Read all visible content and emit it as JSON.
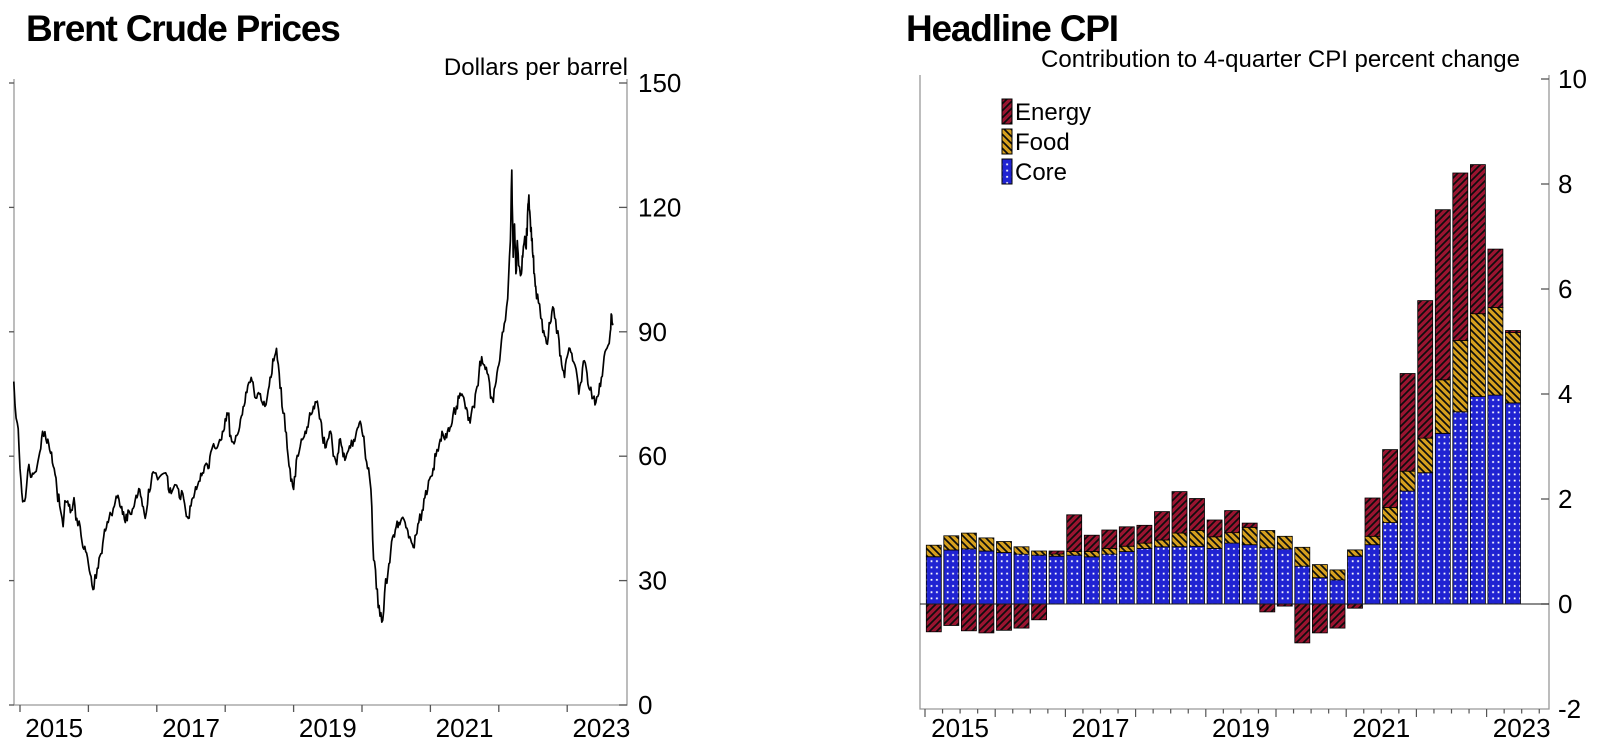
{
  "page": {
    "background": "#ffffff",
    "text_color": "#000000",
    "frame_color": "#999999",
    "tick_color": "#555555"
  },
  "chart_data": [
    {
      "id": "brent",
      "type": "line",
      "title": "Brent Crude Prices",
      "unit_label": "Dollars per barrel",
      "series_name": "Brent crude oil spot price",
      "line_color": "#000000",
      "xlim": [
        2014.91,
        2023.87
      ],
      "ylim": [
        0,
        150
      ],
      "y_ticks": [
        0,
        30,
        60,
        90,
        120,
        150
      ],
      "x_tick_years": [
        2015,
        2016,
        2017,
        2018,
        2019,
        2020,
        2021,
        2022,
        2023
      ],
      "x_label_years": [
        2015,
        2017,
        2019,
        2021,
        2023
      ],
      "grid": false,
      "points": [
        [
          2014.91,
          78
        ],
        [
          2014.96,
          68
        ],
        [
          2015.0,
          57
        ],
        [
          2015.04,
          49
        ],
        [
          2015.08,
          50
        ],
        [
          2015.13,
          58
        ],
        [
          2015.17,
          55
        ],
        [
          2015.21,
          56
        ],
        [
          2015.29,
          61
        ],
        [
          2015.33,
          66
        ],
        [
          2015.38,
          64
        ],
        [
          2015.42,
          63
        ],
        [
          2015.46,
          61
        ],
        [
          2015.5,
          57
        ],
        [
          2015.54,
          52
        ],
        [
          2015.58,
          48
        ],
        [
          2015.63,
          43
        ],
        [
          2015.67,
          49
        ],
        [
          2015.71,
          48
        ],
        [
          2015.75,
          47
        ],
        [
          2015.79,
          50
        ],
        [
          2015.83,
          45
        ],
        [
          2015.88,
          43
        ],
        [
          2015.92,
          38
        ],
        [
          2015.96,
          37
        ],
        [
          2016.0,
          34
        ],
        [
          2016.04,
          31
        ],
        [
          2016.08,
          28
        ],
        [
          2016.13,
          33
        ],
        [
          2016.17,
          36
        ],
        [
          2016.21,
          39
        ],
        [
          2016.25,
          42
        ],
        [
          2016.29,
          44
        ],
        [
          2016.33,
          46
        ],
        [
          2016.38,
          48
        ],
        [
          2016.42,
          50
        ],
        [
          2016.46,
          48
        ],
        [
          2016.5,
          46
        ],
        [
          2016.54,
          44
        ],
        [
          2016.58,
          47
        ],
        [
          2016.63,
          46
        ],
        [
          2016.67,
          48
        ],
        [
          2016.71,
          50
        ],
        [
          2016.75,
          52
        ],
        [
          2016.79,
          48
        ],
        [
          2016.83,
          45
        ],
        [
          2016.88,
          52
        ],
        [
          2016.92,
          54
        ],
        [
          2016.96,
          56
        ],
        [
          2017.04,
          55
        ],
        [
          2017.13,
          56
        ],
        [
          2017.17,
          52
        ],
        [
          2017.21,
          51
        ],
        [
          2017.29,
          53
        ],
        [
          2017.33,
          50
        ],
        [
          2017.38,
          51
        ],
        [
          2017.42,
          47
        ],
        [
          2017.46,
          45
        ],
        [
          2017.5,
          48
        ],
        [
          2017.54,
          50
        ],
        [
          2017.58,
          52
        ],
        [
          2017.63,
          54
        ],
        [
          2017.67,
          56
        ],
        [
          2017.71,
          58
        ],
        [
          2017.75,
          57
        ],
        [
          2017.79,
          61
        ],
        [
          2017.83,
          63
        ],
        [
          2017.88,
          62
        ],
        [
          2017.92,
          64
        ],
        [
          2017.96,
          66
        ],
        [
          2018.0,
          69
        ],
        [
          2018.04,
          70
        ],
        [
          2018.08,
          65
        ],
        [
          2018.13,
          63
        ],
        [
          2018.17,
          65
        ],
        [
          2018.21,
          67
        ],
        [
          2018.25,
          70
        ],
        [
          2018.29,
          73
        ],
        [
          2018.33,
          77
        ],
        [
          2018.38,
          79
        ],
        [
          2018.42,
          76
        ],
        [
          2018.46,
          74
        ],
        [
          2018.5,
          75
        ],
        [
          2018.54,
          73
        ],
        [
          2018.58,
          72
        ],
        [
          2018.63,
          76
        ],
        [
          2018.67,
          79
        ],
        [
          2018.71,
          83
        ],
        [
          2018.75,
          86
        ],
        [
          2018.79,
          80
        ],
        [
          2018.83,
          72
        ],
        [
          2018.88,
          66
        ],
        [
          2018.92,
          60
        ],
        [
          2018.96,
          54
        ],
        [
          2019.0,
          52
        ],
        [
          2019.04,
          59
        ],
        [
          2019.08,
          61
        ],
        [
          2019.13,
          64
        ],
        [
          2019.17,
          66
        ],
        [
          2019.21,
          67
        ],
        [
          2019.25,
          70
        ],
        [
          2019.29,
          72
        ],
        [
          2019.33,
          73
        ],
        [
          2019.38,
          69
        ],
        [
          2019.42,
          65
        ],
        [
          2019.46,
          62
        ],
        [
          2019.5,
          64
        ],
        [
          2019.54,
          66
        ],
        [
          2019.58,
          60
        ],
        [
          2019.63,
          58
        ],
        [
          2019.67,
          64
        ],
        [
          2019.71,
          62
        ],
        [
          2019.75,
          59
        ],
        [
          2019.79,
          61
        ],
        [
          2019.83,
          62
        ],
        [
          2019.88,
          64
        ],
        [
          2019.92,
          66
        ],
        [
          2019.96,
          68
        ],
        [
          2020.0,
          66
        ],
        [
          2020.04,
          62
        ],
        [
          2020.08,
          57
        ],
        [
          2020.13,
          52
        ],
        [
          2020.17,
          35
        ],
        [
          2020.21,
          28
        ],
        [
          2020.25,
          24
        ],
        [
          2020.29,
          20
        ],
        [
          2020.33,
          27
        ],
        [
          2020.38,
          32
        ],
        [
          2020.42,
          37
        ],
        [
          2020.46,
          41
        ],
        [
          2020.5,
          43
        ],
        [
          2020.54,
          44
        ],
        [
          2020.58,
          45
        ],
        [
          2020.63,
          44
        ],
        [
          2020.67,
          42
        ],
        [
          2020.71,
          40
        ],
        [
          2020.75,
          38
        ],
        [
          2020.79,
          41
        ],
        [
          2020.83,
          44
        ],
        [
          2020.88,
          47
        ],
        [
          2020.92,
          50
        ],
        [
          2020.96,
          52
        ],
        [
          2021.0,
          55
        ],
        [
          2021.04,
          57
        ],
        [
          2021.08,
          60
        ],
        [
          2021.13,
          63
        ],
        [
          2021.17,
          66
        ],
        [
          2021.21,
          64
        ],
        [
          2021.25,
          66
        ],
        [
          2021.29,
          67
        ],
        [
          2021.33,
          70
        ],
        [
          2021.38,
          72
        ],
        [
          2021.42,
          74
        ],
        [
          2021.46,
          75
        ],
        [
          2021.5,
          73
        ],
        [
          2021.54,
          71
        ],
        [
          2021.58,
          68
        ],
        [
          2021.63,
          72
        ],
        [
          2021.67,
          76
        ],
        [
          2021.71,
          80
        ],
        [
          2021.75,
          84
        ],
        [
          2021.79,
          82
        ],
        [
          2021.83,
          80
        ],
        [
          2021.88,
          74
        ],
        [
          2021.92,
          73
        ],
        [
          2021.96,
          78
        ],
        [
          2022.0,
          82
        ],
        [
          2022.04,
          88
        ],
        [
          2022.08,
          92
        ],
        [
          2022.13,
          98
        ],
        [
          2022.17,
          112
        ],
        [
          2022.19,
          129
        ],
        [
          2022.21,
          108
        ],
        [
          2022.23,
          116
        ],
        [
          2022.25,
          104
        ],
        [
          2022.27,
          112
        ],
        [
          2022.29,
          106
        ],
        [
          2022.33,
          104
        ],
        [
          2022.35,
          108
        ],
        [
          2022.38,
          113
        ],
        [
          2022.4,
          110
        ],
        [
          2022.42,
          118
        ],
        [
          2022.44,
          123
        ],
        [
          2022.46,
          117
        ],
        [
          2022.48,
          112
        ],
        [
          2022.5,
          108
        ],
        [
          2022.52,
          104
        ],
        [
          2022.54,
          101
        ],
        [
          2022.58,
          97
        ],
        [
          2022.63,
          93
        ],
        [
          2022.67,
          89
        ],
        [
          2022.71,
          87
        ],
        [
          2022.75,
          92
        ],
        [
          2022.79,
          96
        ],
        [
          2022.83,
          93
        ],
        [
          2022.88,
          88
        ],
        [
          2022.92,
          82
        ],
        [
          2022.96,
          79
        ],
        [
          2023.0,
          84
        ],
        [
          2023.04,
          86
        ],
        [
          2023.08,
          83
        ],
        [
          2023.13,
          81
        ],
        [
          2023.17,
          75
        ],
        [
          2023.21,
          78
        ],
        [
          2023.25,
          83
        ],
        [
          2023.29,
          80
        ],
        [
          2023.33,
          76
        ],
        [
          2023.38,
          74
        ],
        [
          2023.42,
          73
        ],
        [
          2023.46,
          75
        ],
        [
          2023.5,
          79
        ],
        [
          2023.54,
          84
        ],
        [
          2023.58,
          86
        ],
        [
          2023.63,
          90
        ],
        [
          2023.65,
          94
        ],
        [
          2023.67,
          92
        ]
      ]
    },
    {
      "id": "cpi",
      "type": "bar",
      "stacked": true,
      "title": "Headline CPI",
      "subtitle": "Contribution to 4-quarter CPI percent change",
      "ylim": [
        -2,
        10
      ],
      "y_ticks": [
        -2,
        0,
        2,
        4,
        6,
        8,
        10
      ],
      "x_label_years": [
        2015,
        2017,
        2019,
        2021,
        2023
      ],
      "legend_position": "top-left",
      "legend": [
        "Energy",
        "Food",
        "Core"
      ],
      "categories": [
        "2015Q1",
        "2015Q2",
        "2015Q3",
        "2015Q4",
        "2016Q1",
        "2016Q2",
        "2016Q3",
        "2016Q4",
        "2017Q1",
        "2017Q2",
        "2017Q3",
        "2017Q4",
        "2018Q1",
        "2018Q2",
        "2018Q3",
        "2018Q4",
        "2019Q1",
        "2019Q2",
        "2019Q3",
        "2019Q4",
        "2020Q1",
        "2020Q2",
        "2020Q3",
        "2020Q4",
        "2021Q1",
        "2021Q2",
        "2021Q3",
        "2021Q4",
        "2022Q1",
        "2022Q2",
        "2022Q3",
        "2022Q4",
        "2023Q1",
        "2023Q2"
      ],
      "series": [
        {
          "name": "Energy",
          "color": "#9a1430",
          "pattern": "diagonal-up",
          "values": [
            -0.53,
            -0.41,
            -0.51,
            -0.55,
            -0.5,
            -0.46,
            -0.3,
            0.06,
            0.7,
            0.31,
            0.35,
            0.37,
            0.34,
            0.54,
            0.79,
            0.61,
            0.32,
            0.42,
            0.08,
            -0.15,
            -0.04,
            -0.74,
            -0.55,
            -0.46,
            -0.08,
            0.73,
            1.1,
            1.86,
            2.62,
            3.24,
            3.19,
            2.84,
            1.11,
            0.04
          ]
        },
        {
          "name": "Food",
          "color": "#d6a01e",
          "pattern": "diagonal-down",
          "values": [
            0.22,
            0.27,
            0.3,
            0.25,
            0.21,
            0.14,
            0.08,
            0.04,
            0.07,
            0.1,
            0.11,
            0.1,
            0.1,
            0.13,
            0.26,
            0.3,
            0.22,
            0.2,
            0.33,
            0.33,
            0.24,
            0.36,
            0.25,
            0.19,
            0.12,
            0.16,
            0.29,
            0.38,
            0.66,
            1.02,
            1.36,
            1.58,
            1.67,
            1.34
          ]
        },
        {
          "name": "Core",
          "color": "#2023d2",
          "pattern": "white-dots",
          "values": [
            0.9,
            1.03,
            1.05,
            1.01,
            0.98,
            0.95,
            0.93,
            0.91,
            0.93,
            0.9,
            0.95,
            1.0,
            1.06,
            1.09,
            1.09,
            1.1,
            1.06,
            1.16,
            1.13,
            1.07,
            1.05,
            0.72,
            0.5,
            0.46,
            0.91,
            1.13,
            1.55,
            2.15,
            2.5,
            3.25,
            3.66,
            3.95,
            3.98,
            3.83
          ]
        }
      ]
    }
  ]
}
